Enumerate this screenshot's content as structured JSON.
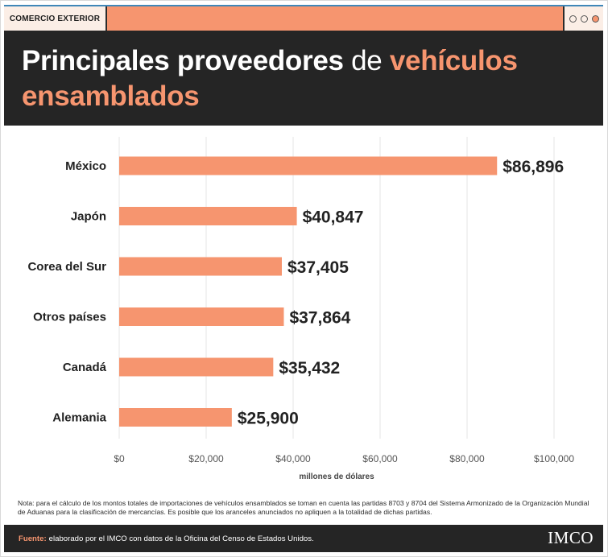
{
  "header": {
    "section_tag": "COMERCIO EXTERIOR",
    "title_part1": "Principales proveedores",
    "title_part2": " de ",
    "title_part3": "vehículos ensamblados"
  },
  "chart_data": {
    "type": "bar",
    "orientation": "horizontal",
    "categories": [
      "México",
      "Japón",
      "Corea del Sur",
      "Otros países",
      "Canadá",
      "Alemania"
    ],
    "values": [
      86896,
      40847,
      37405,
      37864,
      35432,
      25900
    ],
    "data_labels": [
      "$86,896",
      "$40,847",
      "$37,405",
      "$37,864",
      "$35,432",
      "$25,900"
    ],
    "xlabel": "millones de dólares",
    "xlim": [
      0,
      100000
    ],
    "xticks": [
      0,
      20000,
      40000,
      60000,
      80000,
      100000
    ],
    "xtick_labels": [
      "$0",
      "$20,000",
      "$40,000",
      "$60,000",
      "$80,000",
      "$100,000"
    ],
    "grid": true,
    "bar_color": "#f6956f"
  },
  "note": "Nota: para el cálculo de los montos totales de importaciones de vehículos ensamblados se toman en cuenta las partidas 8703 y 8704 del Sistema Armonizado de la Organización Mundial de Aduanas para la clasificación de mercancías. Es posible que los aranceles anunciados no apliquen a la totalidad de dichas partidas.",
  "footer": {
    "source_label": "Fuente:",
    "source_text": "elaborado por el IMCO con datos de la Oficina del Censo de Estados Unidos.",
    "logo": "IMCO"
  },
  "colors": {
    "accent": "#f6956f",
    "dark": "#252525",
    "light_bg": "#fbeee6"
  }
}
